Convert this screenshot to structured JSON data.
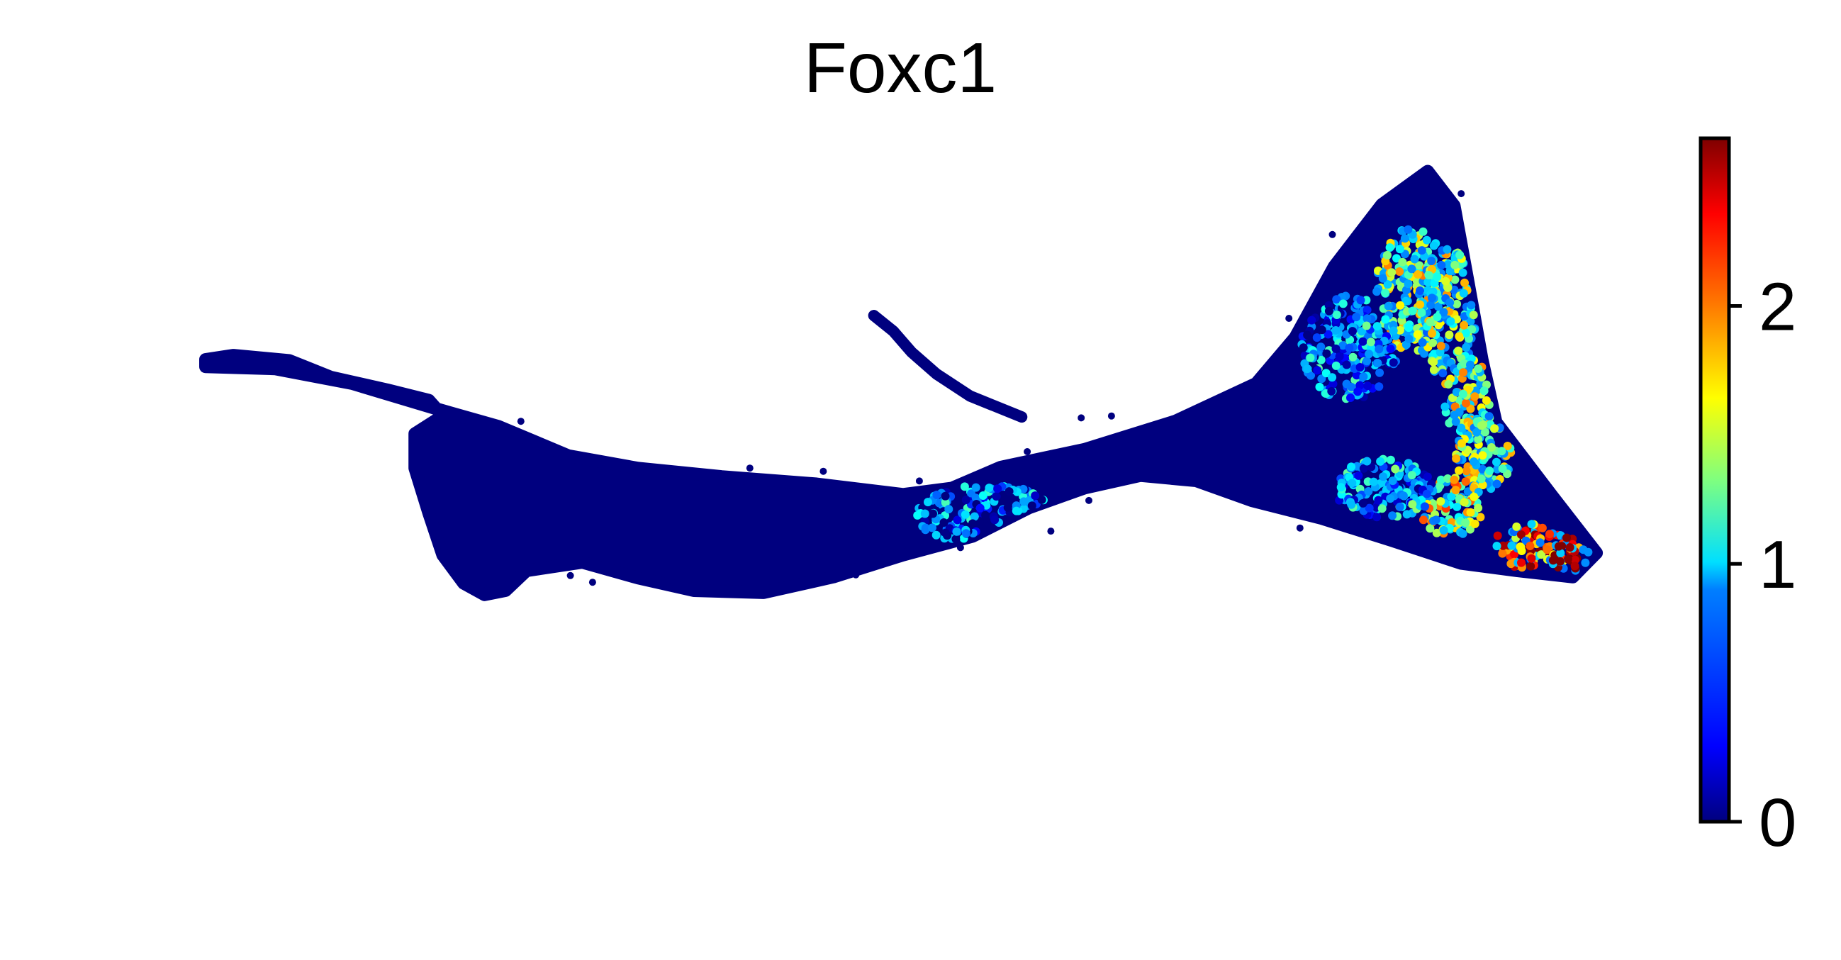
{
  "chart_data": {
    "type": "scatter",
    "title": "Foxc1",
    "xlabel": "",
    "ylabel": "",
    "axes_visible": false,
    "grid": false,
    "legend": "colorbar-right",
    "colormap": "jet",
    "colorbar": {
      "min": 0,
      "max": 2.65,
      "ticks": [
        0,
        1,
        2
      ],
      "tick_labels": [
        "0",
        "1",
        "2"
      ]
    },
    "point_color_scale": [
      "#00007f",
      "#0000ff",
      "#007fff",
      "#00ffff",
      "#7fff7f",
      "#ffff00",
      "#ff7f00",
      "#ff0000",
      "#7f0000"
    ],
    "embedding_extent": {
      "xlim": [
        0,
        100
      ],
      "ylim": [
        0,
        60
      ]
    },
    "shape_outline": [
      [
        0,
        41.9
      ],
      [
        2,
        42.3
      ],
      [
        6,
        41.8
      ],
      [
        9,
        40.2
      ],
      [
        13,
        39.0
      ],
      [
        16,
        38.0
      ],
      [
        17,
        36.5
      ],
      [
        15,
        34.8
      ],
      [
        15,
        31.5
      ],
      [
        16,
        27.2
      ],
      [
        17,
        23.2
      ],
      [
        18.5,
        20.5
      ],
      [
        20,
        19.4
      ],
      [
        21.5,
        19.8
      ],
      [
        23,
        21.7
      ],
      [
        27,
        22.5
      ],
      [
        31,
        21.0
      ],
      [
        35,
        19.8
      ],
      [
        40,
        19.6
      ],
      [
        45,
        21.1
      ],
      [
        50,
        23.2
      ],
      [
        55,
        25.0
      ],
      [
        59,
        27.7
      ],
      [
        63,
        29.6
      ],
      [
        67,
        30.8
      ],
      [
        71,
        30.3
      ],
      [
        75,
        28.4
      ],
      [
        80,
        26.7
      ],
      [
        85,
        24.6
      ],
      [
        90,
        22.4
      ],
      [
        94,
        21.7
      ],
      [
        98,
        21.1
      ],
      [
        99.7,
        23.4
      ],
      [
        96.5,
        28.9
      ],
      [
        92.5,
        35.9
      ],
      [
        91.5,
        41.9
      ],
      [
        90.5,
        49.3
      ],
      [
        89.5,
        56.6
      ],
      [
        87.6,
        59.9
      ],
      [
        84.3,
        56.7
      ],
      [
        80.9,
        50.8
      ],
      [
        78.1,
        44.0
      ],
      [
        75.3,
        39.6
      ],
      [
        69.5,
        36.0
      ],
      [
        63.0,
        33.3
      ],
      [
        57.0,
        31.6
      ],
      [
        53.5,
        29.6
      ],
      [
        50.0,
        29.0
      ],
      [
        43.8,
        30.0
      ],
      [
        37.0,
        30.7
      ],
      [
        31.0,
        31.5
      ],
      [
        26.0,
        32.7
      ],
      [
        21.0,
        35.5
      ],
      [
        16.5,
        37.2
      ],
      [
        10.5,
        39.6
      ],
      [
        5.0,
        41.0
      ],
      [
        0,
        41.2
      ]
    ],
    "branches": [
      {
        "points": [
          [
            47.9,
            46.1
          ],
          [
            49.3,
            44.6
          ],
          [
            50.6,
            42.6
          ],
          [
            52.4,
            40.5
          ],
          [
            54.8,
            38.4
          ],
          [
            58.5,
            36.4
          ]
        ]
      }
    ],
    "hotspots": [
      {
        "x": 86.5,
        "y": 48.5,
        "rx": 2.6,
        "ry": 6.0,
        "value": 1.3
      },
      {
        "x": 89.0,
        "y": 46.0,
        "rx": 2.2,
        "ry": 6.5,
        "value": 1.25
      },
      {
        "x": 90.6,
        "y": 38.0,
        "rx": 1.8,
        "ry": 4.0,
        "value": 1.35
      },
      {
        "x": 91.6,
        "y": 33.0,
        "rx": 2.0,
        "ry": 4.0,
        "value": 1.3
      },
      {
        "x": 89.3,
        "y": 27.8,
        "rx": 2.4,
        "ry": 2.8,
        "value": 1.5
      },
      {
        "x": 95.2,
        "y": 24.0,
        "rx": 3.0,
        "ry": 2.2,
        "value": 2.1
      },
      {
        "x": 97.8,
        "y": 23.0,
        "rx": 1.4,
        "ry": 1.4,
        "value": 2.4
      },
      {
        "x": 82.0,
        "y": 43.0,
        "rx": 3.5,
        "ry": 5.0,
        "value": 0.6
      },
      {
        "x": 84.5,
        "y": 29.5,
        "rx": 3.5,
        "ry": 3.0,
        "value": 0.7
      },
      {
        "x": 56.0,
        "y": 27.0,
        "rx": 5.0,
        "ry": 3.0,
        "value": 0.5
      }
    ]
  }
}
